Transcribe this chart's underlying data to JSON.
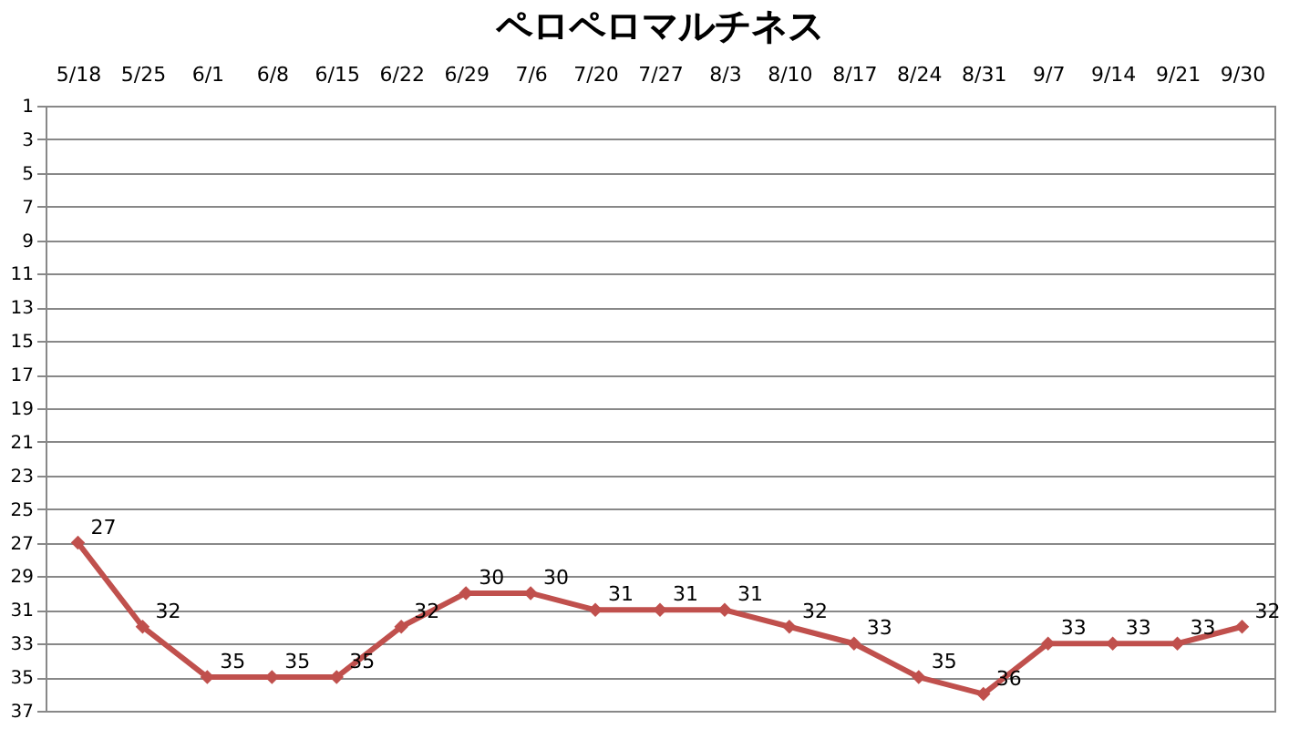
{
  "chart_data": {
    "type": "line",
    "title": "ペロペロマルチネス",
    "categories": [
      "5/18",
      "5/25",
      "6/1",
      "6/8",
      "6/15",
      "6/22",
      "6/29",
      "7/6",
      "7/20",
      "7/27",
      "8/3",
      "8/10",
      "8/17",
      "8/24",
      "8/31",
      "9/7",
      "9/14",
      "9/21",
      "9/30"
    ],
    "series": [
      {
        "color": "#c0504d",
        "values": [
          27,
          32,
          35,
          35,
          35,
          32,
          30,
          30,
          31,
          31,
          31,
          32,
          33,
          35,
          36,
          33,
          33,
          33,
          32
        ]
      }
    ],
    "ylim": [
      37,
      1
    ],
    "yticks": [
      1,
      3,
      5,
      7,
      9,
      11,
      13,
      15,
      17,
      19,
      21,
      23,
      25,
      27,
      29,
      31,
      33,
      35,
      37
    ],
    "grid": "y",
    "marker": "diamond",
    "line_style": "solid",
    "data_labels": true
  }
}
